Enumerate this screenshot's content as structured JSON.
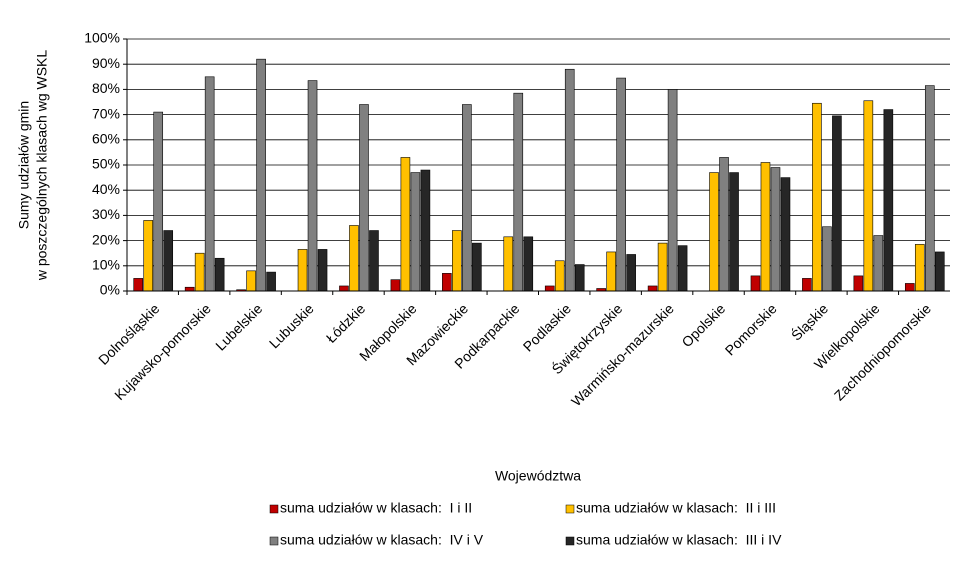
{
  "chart_data": {
    "type": "bar",
    "ylabel": [
      "Sumy udziałów gmin",
      "w poszczególnych klasach wg WSKL"
    ],
    "xlabel": "Województwa",
    "categories": [
      "Dolnośląskie",
      "Kujawsko-pomorskie",
      "Lubelskie",
      "Lubuskie",
      "Łódzkie",
      "Małopolskie",
      "Mazowieckie",
      "Podkarpackie",
      "Podlaskie",
      "Świętokrzyskie",
      "Warmińsko-mazurskie",
      "Opolskie",
      "Pomorskie",
      "Śląskie",
      "Wielkopolskie",
      "Zachodniopomorskie"
    ],
    "series": [
      {
        "name": "suma udziałów w klasach:  I i II",
        "color": "#c00000",
        "values": [
          5,
          1.5,
          0.5,
          0,
          2,
          4.5,
          7,
          0,
          2,
          1,
          2,
          0,
          6,
          5,
          6,
          3
        ]
      },
      {
        "name": "suma udziałów w klasach:  II i III",
        "color": "#ffc000",
        "values": [
          28,
          15,
          8,
          16.5,
          26,
          53,
          24,
          21.5,
          12,
          15.5,
          19,
          47,
          51,
          74.5,
          75.5,
          18.5
        ]
      },
      {
        "name": "suma udziałów w klasach:  IV i V",
        "color": "#808080",
        "values": [
          71,
          85,
          92,
          83.5,
          74,
          47,
          74,
          78.5,
          88,
          84.5,
          80,
          53,
          49,
          25.5,
          22,
          81.5
        ]
      },
      {
        "name": "suma udziałów w klasach:  III i IV",
        "color": "#262626",
        "values": [
          24,
          13,
          7.5,
          16.5,
          24,
          48,
          19,
          21.5,
          10.5,
          14.5,
          18,
          47,
          45,
          69.5,
          72,
          15.5
        ]
      }
    ],
    "ylim": [
      0,
      100
    ],
    "yticks": [
      {
        "value": 0,
        "label": "0%"
      },
      {
        "value": 10,
        "label": "10%"
      },
      {
        "value": 20,
        "label": "20%"
      },
      {
        "value": 30,
        "label": "30%"
      },
      {
        "value": 40,
        "label": "40%"
      },
      {
        "value": 50,
        "label": "50%"
      },
      {
        "value": 60,
        "label": "60%"
      },
      {
        "value": 70,
        "label": "70%"
      },
      {
        "value": 80,
        "label": "80%"
      },
      {
        "value": 90,
        "label": "90%"
      },
      {
        "value": 100,
        "label": "100%"
      }
    ],
    "grid": true
  }
}
